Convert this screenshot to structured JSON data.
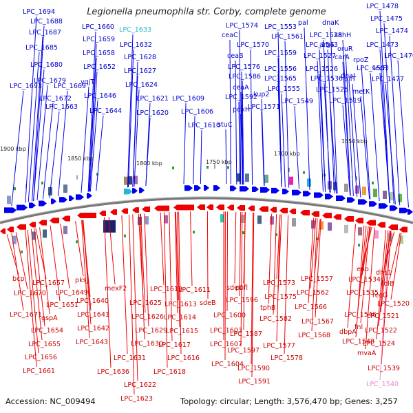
{
  "title": "Legionella pneumophila str. Corby, complete genome",
  "accession": "Accession: NC_009494",
  "summary": "Topology: circular; Length: 3,576,470 bp; Genes: 3,257",
  "colors": {
    "forward": "#0000ee",
    "reverse": "#ee0000",
    "highlight_cyan": "#22bbcc",
    "highlight_pink": "#ee88cc",
    "backbone": "#888888"
  },
  "kbp_ticks": [
    "1900 kbp",
    "1850 kbp",
    "1800 kbp",
    "1750 kbp",
    "1700 kbp",
    "1650 kbp"
  ],
  "forward_labels": [
    "LPC_1694",
    "LPC_1688",
    "LPC_1687",
    "LPC_1685",
    "LPC_1680",
    "LPC_1679",
    "LPC_1693",
    "LPC_1672",
    "LPC_1669",
    "LPC_1663",
    "LPC_1660",
    "LPC_1659",
    "LPC_1658",
    "LPC_1652",
    "yqjT",
    "LPC_1646",
    "LPC_1644",
    "LPC_1633",
    "LPC_1632",
    "LPC_1628",
    "LPC_1627",
    "LPC_1624",
    "LPC_1621",
    "LPC_1620",
    "LPC_1609",
    "LPC_1606",
    "LPC_1610",
    "LPC_1574",
    "ceaC",
    "LPC_1570",
    "ceaB",
    "LPC_1576",
    "LPC_1586",
    "ceaA",
    "LPC_1592",
    "kup2",
    "pdxH",
    "LPC_1571",
    "stuC",
    "LPC_1553",
    "LPC_1561",
    "LPC_1559",
    "LPC_1556",
    "LPC_1565",
    "LPC_1555",
    "LPC_1549",
    "pal",
    "LPC_1528",
    "LPC_1543",
    "argS",
    "LPC_1527",
    "LPC_1526",
    "LPC_1536",
    "LPC_1525",
    "LPC_1519",
    "dnaK",
    "sahH",
    "oruR",
    "carA",
    "dnaJ",
    "pilT",
    "metK",
    "LPC_1478",
    "LPC_1475",
    "LPC_1474",
    "LPC_1473",
    "rpoZ",
    "LPC_1470",
    "LPC_1503",
    "secF",
    "LPC_1477"
  ],
  "reverse_labels": [
    "bcp",
    "LPC_1657",
    "LPC_1670",
    "LPC_1649",
    "LPC_1651",
    "LPC_1671",
    "gspA",
    "LPC_1654",
    "LPC_1655",
    "LPC_1656",
    "LPC_1661",
    "pksJ",
    "LPC_1640",
    "LPC_1641",
    "LPC_1642",
    "LPC_1643",
    "mexF2",
    "LPC_1625",
    "LPC_1626",
    "LPC_1629",
    "LPC_1630",
    "LPC_1631",
    "LPC_1636",
    "LPC_1622",
    "LPC_1623",
    "LPC_1619",
    "LPC_1613",
    "LPC_1614",
    "LPC_1615",
    "LPC_1617",
    "LPC_1616",
    "LPC_1618",
    "LPC_1611",
    "LPC_1607",
    "sdeB",
    "LPC_1600",
    "LPC_1603",
    "LPC_1604",
    "sdeC",
    "LPC_1596",
    "LPC_1597",
    "pofl",
    "LPC_1587",
    "LPC_1590",
    "LPC_1591",
    "LPC_1575",
    "LPC_1573",
    "tphB",
    "LPC_1582",
    "LPC_1577",
    "LPC_1578",
    "LPC_1557",
    "LPC_1562",
    "LPC_1566",
    "LPC_1567",
    "LPC_1568",
    "LPC_1534",
    "LPC_1535",
    "LPC_1546",
    "fnl",
    "LPC_1548",
    "dbpA",
    "mvaA",
    "LPC_1539",
    "LPC_1540",
    "eno",
    "dhs1",
    "folB",
    "recG",
    "LPC_1520",
    "LPC_1521",
    "LPC_1522",
    "LPC_1524"
  ]
}
